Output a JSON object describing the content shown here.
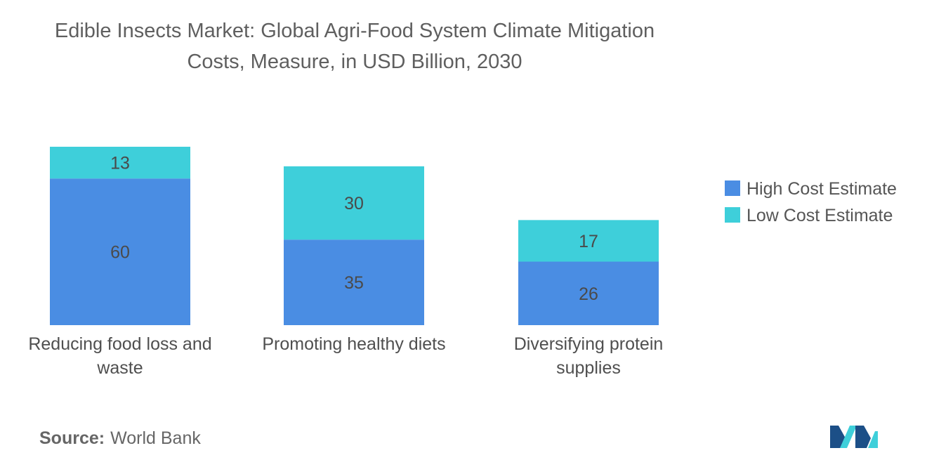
{
  "chart_data": {
    "type": "bar",
    "stacked": true,
    "title": "Edible Insects Market: Global Agri-Food System Climate Mitigation Costs, Measure, in USD Billion, 2030",
    "title_lines": [
      "Edible Insects Market: Global Agri-Food System Climate Mitigation",
      "Costs, Measure, in USD Billion, 2030"
    ],
    "categories": [
      "Reducing food loss and waste",
      "Promoting healthy diets",
      "Diversifying protein supplies"
    ],
    "category_lines": [
      [
        "Reducing food loss and",
        "waste"
      ],
      [
        "Promoting healthy diets"
      ],
      [
        "Diversifying protein",
        "supplies"
      ]
    ],
    "series": [
      {
        "name": "High Cost Estimate",
        "values": [
          60,
          35,
          26
        ],
        "color": "#4a8de3"
      },
      {
        "name": "Low Cost Estimate",
        "values": [
          13,
          30,
          17
        ],
        "color": "#3ecfda"
      }
    ],
    "xlabel": "",
    "ylabel": "",
    "grid": false,
    "legend_position": "right"
  },
  "source": {
    "label": "Source:",
    "value": "World Bank"
  },
  "logo": {
    "icon": "company-logo-icon",
    "colors": [
      "#1c4f87",
      "#3ecfda"
    ]
  }
}
